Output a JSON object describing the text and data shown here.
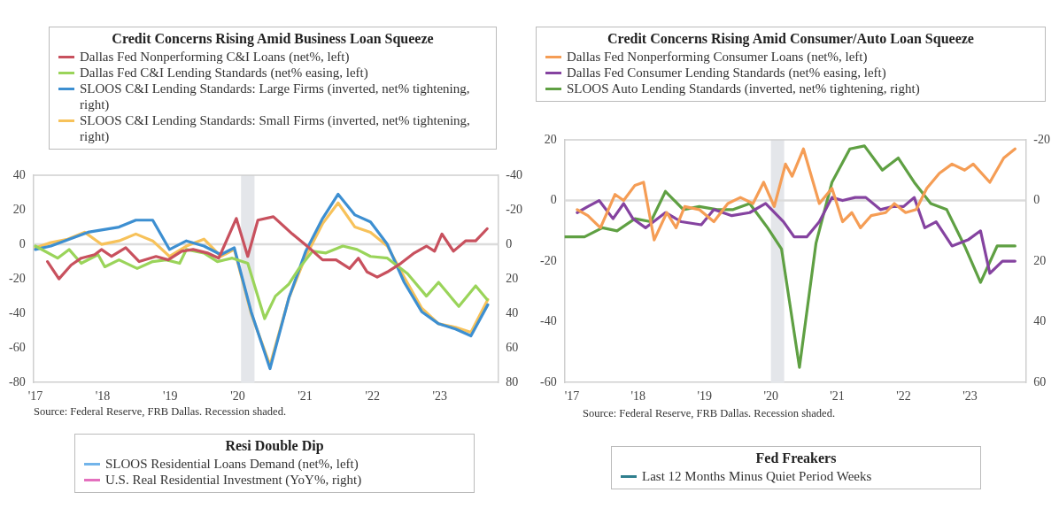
{
  "chart_data": [
    {
      "type": "line",
      "title": "Credit Concerns Rising Amid Business Loan Squeeze",
      "legend": "top",
      "xlim": [
        2016.97,
        2023.86
      ],
      "xticks": [
        {
          "value": 2017,
          "label": "'17"
        },
        {
          "value": 2018,
          "label": "'18"
        },
        {
          "value": 2019,
          "label": "'19"
        },
        {
          "value": 2020,
          "label": "'20"
        },
        {
          "value": 2021,
          "label": "'21"
        },
        {
          "value": 2022,
          "label": "'22"
        },
        {
          "value": 2023,
          "label": "'23"
        }
      ],
      "ylim": [
        -80,
        40
      ],
      "yticks": [
        -80,
        -60,
        -40,
        -20,
        0,
        20,
        40
      ],
      "y2lim": [
        80,
        -40
      ],
      "y2ticks": [
        -40,
        -20,
        0,
        20,
        40,
        60,
        80
      ],
      "bands": [
        {
          "axis": "x",
          "from": 2020.05,
          "to": 2020.25,
          "color": "#e4e6ea"
        }
      ],
      "ref_lines": [
        {
          "axis": "y",
          "value": 0,
          "color": "#dcdcdc"
        }
      ],
      "annotations": [
        "Source: Federal Reserve, FRB Dallas. Recession shaded."
      ],
      "series": [
        {
          "name": "Dallas Fed Nonperforming C&I Loans (net%, left)",
          "color": "#c8515e",
          "axis": "y",
          "x": [
            2017.18,
            2017.35,
            2017.53,
            2017.68,
            2017.88,
            2017.98,
            2018.13,
            2018.34,
            2018.54,
            2018.79,
            2018.97,
            2019.17,
            2019.34,
            2019.55,
            2019.72,
            2019.98,
            2020.15,
            2020.3,
            2020.53,
            2020.81,
            2021.06,
            2021.26,
            2021.46,
            2021.66,
            2021.79,
            2021.92,
            2022.07,
            2022.22,
            2022.42,
            2022.62,
            2022.8,
            2022.92,
            2023.03,
            2023.2,
            2023.38,
            2023.53,
            2023.7
          ],
          "values": [
            -10,
            -20,
            -12,
            -8,
            -6,
            -3,
            -7,
            -2,
            -10,
            -7,
            -9,
            -4,
            -3,
            -5,
            -8,
            15,
            -7,
            14,
            16,
            6,
            -2,
            -9,
            -9,
            -14,
            -8,
            -16,
            -19,
            -16,
            -11,
            -5,
            -1,
            -4,
            6,
            -4,
            2,
            2,
            9
          ]
        },
        {
          "name": "Dallas Fed C&I Lending Standards (net% easing, left)",
          "color": "#9ad45a",
          "axis": "y",
          "x": [
            2017.0,
            2017.33,
            2017.5,
            2017.68,
            2017.93,
            2018.03,
            2018.24,
            2018.51,
            2018.74,
            2018.94,
            2019.14,
            2019.24,
            2019.5,
            2019.7,
            2019.92,
            2020.15,
            2020.4,
            2020.56,
            2020.76,
            2020.91,
            2021.11,
            2021.31,
            2021.56,
            2021.77,
            2021.97,
            2022.22,
            2022.52,
            2022.8,
            2022.98,
            2023.28,
            2023.53,
            2023.7
          ],
          "values": [
            -1,
            -8,
            -3,
            -11,
            -6,
            -13,
            -9,
            -14,
            -10,
            -9,
            -11,
            -3,
            -5,
            -10,
            -8,
            -11,
            -43,
            -30,
            -23,
            -14,
            -4,
            -5,
            -1,
            -3,
            -7,
            -8,
            -17,
            -30,
            -22,
            -36,
            -24,
            -32
          ]
        },
        {
          "name": "SLOOS C&I Lending Standards: Large Firms (inverted, net% tightening, right)",
          "color": "#3d8fd1",
          "axis": "y2",
          "x": [
            2017.0,
            2017.23,
            2017.78,
            2018.24,
            2018.49,
            2018.74,
            2018.99,
            2019.24,
            2019.5,
            2019.75,
            2019.95,
            2020.2,
            2020.48,
            2020.76,
            2021.01,
            2021.26,
            2021.49,
            2021.74,
            2021.97,
            2022.22,
            2022.47,
            2022.73,
            2022.98,
            2023.23,
            2023.46,
            2023.71
          ],
          "values": [
            3,
            1,
            -7,
            -10,
            -14,
            -14,
            3,
            -2,
            1,
            6,
            2,
            39,
            72,
            31,
            4,
            -15,
            -29,
            -17,
            -13,
            0,
            22,
            39,
            46,
            49,
            53,
            35
          ]
        },
        {
          "name": "SLOOS C&I Lending Standards: Small Firms (inverted, net% tightening, right)",
          "color": "#f7c25a",
          "axis": "y2",
          "x": [
            2017.0,
            2017.23,
            2017.48,
            2017.73,
            2017.98,
            2018.24,
            2018.49,
            2018.74,
            2018.99,
            2019.24,
            2019.5,
            2019.75,
            2019.95,
            2020.2,
            2020.48,
            2020.76,
            2021.01,
            2021.26,
            2021.49,
            2021.74,
            2021.97,
            2022.22,
            2022.47,
            2022.73,
            2022.98,
            2023.23,
            2023.46,
            2023.71
          ],
          "values": [
            2,
            -1,
            -3,
            -7,
            0,
            -2,
            -6,
            -2,
            7,
            1,
            -3,
            7,
            3,
            40,
            70,
            31,
            7,
            -12,
            -24,
            -10,
            -7,
            1,
            19,
            37,
            46,
            48,
            51,
            32
          ]
        }
      ]
    },
    {
      "type": "line",
      "title": "Credit Concerns Rising Amid Consumer/Auto Loan Squeeze",
      "legend": "top",
      "xlim": [
        2016.89,
        2023.84
      ],
      "xticks": [
        {
          "value": 2017,
          "label": "'17"
        },
        {
          "value": 2018,
          "label": "'18"
        },
        {
          "value": 2019,
          "label": "'19"
        },
        {
          "value": 2020,
          "label": "'20"
        },
        {
          "value": 2021,
          "label": "'21"
        },
        {
          "value": 2022,
          "label": "'22"
        },
        {
          "value": 2023,
          "label": "'23"
        }
      ],
      "ylim": [
        -60,
        20
      ],
      "yticks": [
        -60,
        -40,
        -20,
        0,
        20
      ],
      "y2lim": [
        60,
        -20
      ],
      "y2ticks": [
        -20,
        0,
        20,
        40,
        60
      ],
      "bands": [
        {
          "axis": "x",
          "from": 2020.0,
          "to": 2020.2,
          "color": "#e4e6ea"
        }
      ],
      "ref_lines": [
        {
          "axis": "y",
          "value": 0,
          "color": "#dcdcdc"
        }
      ],
      "annotations": [
        "Source: Federal Reserve, FRB Dallas. Recession shaded."
      ],
      "series": [
        {
          "name": "Dallas Fed Nonperforming Consumer Loans (net%, left)",
          "color": "#f59d55",
          "axis": "y",
          "x": [
            2017.08,
            2017.24,
            2017.43,
            2017.65,
            2017.78,
            2017.95,
            2018.08,
            2018.24,
            2018.43,
            2018.57,
            2018.7,
            2018.92,
            2019.14,
            2019.35,
            2019.54,
            2019.73,
            2019.89,
            2020.05,
            2020.22,
            2020.32,
            2020.49,
            2020.73,
            2020.92,
            2021.08,
            2021.22,
            2021.35,
            2021.51,
            2021.73,
            2021.86,
            2022.03,
            2022.19,
            2022.35,
            2022.54,
            2022.73,
            2022.92,
            2023.05,
            2023.3,
            2023.51,
            2023.68
          ],
          "values": [
            -3,
            -5,
            -9,
            2,
            0,
            5,
            6,
            -13,
            -4,
            -9,
            -2,
            -3,
            -7,
            -1,
            1,
            -1,
            6,
            -2,
            12,
            8,
            17,
            -1,
            4,
            -7,
            -4,
            -9,
            -5,
            -4,
            -1,
            -4,
            -3,
            4,
            9,
            12,
            10,
            12,
            6,
            14,
            17
          ]
        },
        {
          "name": "Dallas Fed Consumer Lending Standards (net% easing, left)",
          "color": "#8543a0",
          "axis": "y",
          "x": [
            2017.08,
            2017.24,
            2017.41,
            2017.62,
            2017.78,
            2017.92,
            2018.11,
            2018.41,
            2018.65,
            2018.95,
            2019.14,
            2019.41,
            2019.68,
            2019.92,
            2020.19,
            2020.35,
            2020.54,
            2020.73,
            2020.92,
            2021.08,
            2021.27,
            2021.43,
            2021.65,
            2021.84,
            2022.0,
            2022.16,
            2022.32,
            2022.49,
            2022.73,
            2022.97,
            2023.16,
            2023.3,
            2023.49,
            2023.68
          ],
          "values": [
            -4,
            -2,
            0,
            -6,
            -1,
            -6,
            -9,
            -4,
            -7,
            -8,
            -3,
            -5,
            -4,
            -1,
            -7,
            -12,
            -12,
            -7,
            1,
            0,
            1,
            1,
            -3,
            -2,
            -2,
            1,
            -9,
            -7,
            -15,
            -13,
            -10,
            -24,
            -20,
            -20
          ]
        },
        {
          "name": "SLOOS Auto Lending Standards (inverted, net% tightening, right)",
          "color": "#5fa043",
          "axis": "y2",
          "x": [
            2016.89,
            2017.19,
            2017.46,
            2017.68,
            2017.95,
            2018.19,
            2018.41,
            2018.68,
            2018.92,
            2019.19,
            2019.43,
            2019.68,
            2019.95,
            2020.16,
            2020.43,
            2020.68,
            2020.92,
            2021.19,
            2021.41,
            2021.68,
            2021.92,
            2022.16,
            2022.41,
            2022.65,
            2022.92,
            2023.16,
            2023.41,
            2023.68
          ],
          "values": [
            12,
            12,
            9,
            10,
            6,
            7,
            -3,
            3,
            2,
            3,
            3,
            1,
            9,
            16,
            55,
            14,
            -6,
            -17,
            -18,
            -10,
            -14,
            -6,
            1,
            3,
            15,
            27,
            15,
            15
          ]
        }
      ]
    },
    {
      "type": "other",
      "title": "Resi Double Dip",
      "legend": "top",
      "series": [
        {
          "name": "SLOOS Residential Loans Demand (net%, left)",
          "color": "#72b4ea"
        },
        {
          "name": "U.S. Real Residential Investment (YoY%, right)",
          "color": "#e470be"
        }
      ]
    },
    {
      "type": "other",
      "title": "Fed Freakers",
      "legend": "top",
      "series": [
        {
          "name": "Last 12 Months Minus Quiet Period Weeks",
          "color": "#2f7f8e"
        }
      ]
    }
  ]
}
